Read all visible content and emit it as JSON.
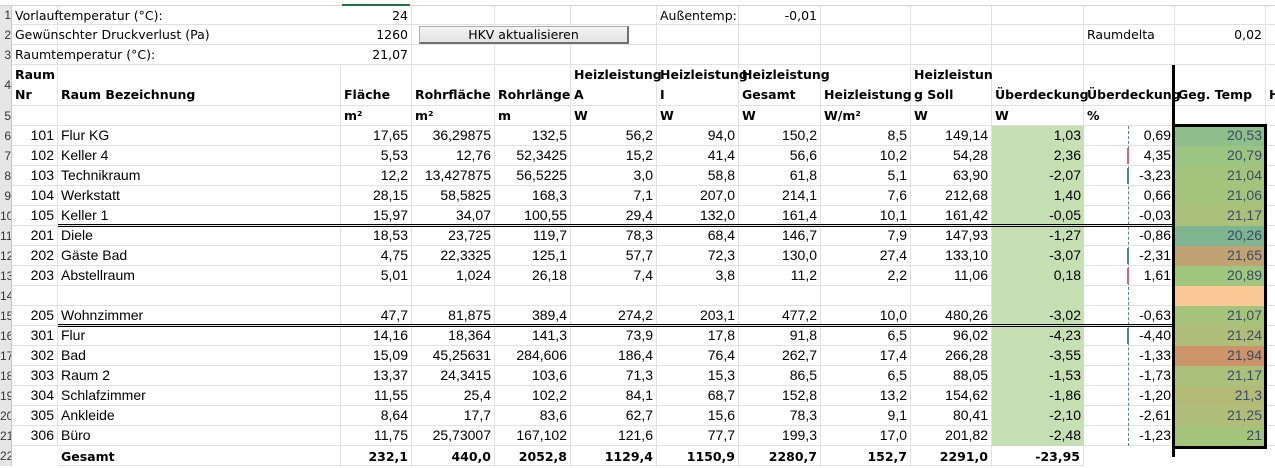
{
  "params": {
    "vorlauf_label": "Vorlauftemperatur (°C):",
    "vorlauf_value": "24",
    "druck_label": "Gewünschter Druckverlust (Pa)",
    "druck_value": "1260",
    "raumtemp_label": "Raumtemperatur (°C):",
    "raumtemp_value": "21,07",
    "aussen_label": "Außentemp:",
    "aussen_value": "-0,01",
    "raumdelta_label": "Raumdelta",
    "raumdelta_value": "0,02",
    "button_label": "HKV aktualisieren"
  },
  "row_headers": [
    "1",
    "2",
    "3",
    "4",
    "5",
    "6",
    "7",
    "8",
    "9",
    "10",
    "11",
    "12",
    "13",
    "14",
    "15",
    "16",
    "17",
    "18",
    "19",
    "20",
    "21",
    "22"
  ],
  "headers": {
    "nr_line1": "Raum",
    "nr_line2": "Nr",
    "name": "Raum Bezeichnung",
    "flaeche": "Fläche",
    "rohrflaeche": "Rohrfläche",
    "rohrlaenge": "Rohrlänge",
    "hl_a_1": "Heizleistung",
    "hl_a_2": "A",
    "hl_i_1": "Heizleistung",
    "hl_i_2": "I",
    "hl_g_1": "Heizleistung",
    "hl_g_2": "Gesamt",
    "hl_m2": "Heizleistung",
    "hl_soll_1": "Heizleistun",
    "hl_soll_2": "g Soll",
    "ueber_w": "Überdeckung",
    "ueber_p": "Überdeckung",
    "gegtemp": "Geg. Temp",
    "next": "H"
  },
  "units": {
    "flaeche": "m²",
    "rohrflaeche": "m²",
    "rohrlaenge": "m",
    "hl_a": "W",
    "hl_i": "W",
    "hl_g": "W",
    "hl_m2": "W/m²",
    "hl_soll": "W",
    "ueber_w": "W",
    "ueber_p": "%"
  },
  "rows": [
    {
      "nr": "101",
      "name": "Flur KG",
      "flaeche": "17,65",
      "rohrflaeche": "36,29875",
      "rohrlaenge": "132,5",
      "hl_a": "56,2",
      "hl_i": "94,0",
      "hl_g": "150,2",
      "hl_m2": "8,5",
      "hl_soll": "149,14",
      "ueber_w": "1,03",
      "ueber_p": "0,69",
      "gegtemp": "20,53",
      "temp_color": "#8fbf8a"
    },
    {
      "nr": "102",
      "name": "Keller 4",
      "flaeche": "5,53",
      "rohrflaeche": "12,76",
      "rohrlaenge": "52,3425",
      "hl_a": "15,2",
      "hl_i": "41,4",
      "hl_g": "56,6",
      "hl_m2": "10,2",
      "hl_soll": "54,28",
      "ueber_w": "2,36",
      "ueber_p": "4,35",
      "gegtemp": "20,79",
      "temp_color": "#9cc582"
    },
    {
      "nr": "103",
      "name": "Technikraum",
      "flaeche": "12,2",
      "rohrflaeche": "13,427875",
      "rohrlaenge": "56,5225",
      "hl_a": "3,0",
      "hl_i": "58,8",
      "hl_g": "61,8",
      "hl_m2": "5,1",
      "hl_soll": "63,90",
      "ueber_w": "-2,07",
      "ueber_p": "-3,23",
      "gegtemp": "21,04",
      "temp_color": "#a4c47c"
    },
    {
      "nr": "104",
      "name": "Werkstatt",
      "flaeche": "28,15",
      "rohrflaeche": "58,5825",
      "rohrlaenge": "168,3",
      "hl_a": "7,1",
      "hl_i": "207,0",
      "hl_g": "214,1",
      "hl_m2": "7,6",
      "hl_soll": "212,68",
      "ueber_w": "1,40",
      "ueber_p": "0,66",
      "gegtemp": "21,06",
      "temp_color": "#a5c47b"
    },
    {
      "nr": "105",
      "name": "Keller 1",
      "flaeche": "15,97",
      "rohrflaeche": "34,07",
      "rohrlaenge": "100,55",
      "hl_a": "29,4",
      "hl_i": "132,0",
      "hl_g": "161,4",
      "hl_m2": "10,1",
      "hl_soll": "161,42",
      "ueber_w": "-0,05",
      "ueber_p": "-0,03",
      "gegtemp": "21,17",
      "temp_color": "#abc07a"
    },
    {
      "nr": "201",
      "name": "Diele",
      "flaeche": "18,53",
      "rohrflaeche": "23,725",
      "rohrlaenge": "119,7",
      "hl_a": "78,3",
      "hl_i": "68,4",
      "hl_g": "146,7",
      "hl_m2": "7,9",
      "hl_soll": "147,93",
      "ueber_w": "-1,27",
      "ueber_p": "-0,86",
      "gegtemp": "20,26",
      "temp_color": "#7fb490"
    },
    {
      "nr": "202",
      "name": "Gäste Bad",
      "flaeche": "4,75",
      "rohrflaeche": "22,3325",
      "rohrlaenge": "125,1",
      "hl_a": "57,7",
      "hl_i": "72,3",
      "hl_g": "130,0",
      "hl_m2": "27,4",
      "hl_soll": "133,10",
      "ueber_w": "-3,07",
      "ueber_p": "-2,31",
      "gegtemp": "21,65",
      "temp_color": "#c1a272"
    },
    {
      "nr": "203",
      "name": "Abstellraum",
      "flaeche": "5,01",
      "rohrflaeche": "1,024",
      "rohrlaenge": "26,18",
      "hl_a": "7,4",
      "hl_i": "3,8",
      "hl_g": "11,2",
      "hl_m2": "2,2",
      "hl_soll": "11,06",
      "ueber_w": "0,18",
      "ueber_p": "1,61",
      "gegtemp": "20,89",
      "temp_color": "#a0c77e"
    },
    {
      "nr": "",
      "name": "",
      "flaeche": "",
      "rohrflaeche": "",
      "rohrlaenge": "",
      "hl_a": "",
      "hl_i": "",
      "hl_g": "",
      "hl_m2": "",
      "hl_soll": "",
      "ueber_w": "",
      "ueber_p": "",
      "gegtemp": "",
      "temp_color": "#fbc995"
    },
    {
      "nr": "205",
      "name": "Wohnzimmer",
      "flaeche": "47,7",
      "rohrflaeche": "81,875",
      "rohrlaenge": "389,4",
      "hl_a": "274,2",
      "hl_i": "203,1",
      "hl_g": "477,2",
      "hl_m2": "10,0",
      "hl_soll": "480,26",
      "ueber_w": "-3,02",
      "ueber_p": "-0,63",
      "gegtemp": "21,07",
      "temp_color": "#a6c37a"
    },
    {
      "nr": "301",
      "name": "Flur",
      "flaeche": "14,16",
      "rohrflaeche": "18,364",
      "rohrlaenge": "141,3",
      "hl_a": "73,9",
      "hl_i": "17,8",
      "hl_g": "91,8",
      "hl_m2": "6,5",
      "hl_soll": "96,02",
      "ueber_w": "-4,23",
      "ueber_p": "-4,40",
      "gegtemp": "21,24",
      "temp_color": "#afbd78"
    },
    {
      "nr": "302",
      "name": "Bad",
      "flaeche": "15,09",
      "rohrflaeche": "45,25631",
      "rohrlaenge": "284,606",
      "hl_a": "186,4",
      "hl_i": "76,4",
      "hl_g": "262,7",
      "hl_m2": "17,4",
      "hl_soll": "266,28",
      "ueber_w": "-3,55",
      "ueber_p": "-1,33",
      "gegtemp": "21,94",
      "temp_color": "#cc9468"
    },
    {
      "nr": "303",
      "name": "Raum 2",
      "flaeche": "13,37",
      "rohrflaeche": "24,3415",
      "rohrlaenge": "103,6",
      "hl_a": "71,3",
      "hl_i": "15,3",
      "hl_g": "86,5",
      "hl_m2": "6,5",
      "hl_soll": "88,05",
      "ueber_w": "-1,53",
      "ueber_p": "-1,73",
      "gegtemp": "21,17",
      "temp_color": "#abc07a"
    },
    {
      "nr": "304",
      "name": "Schlafzimmer",
      "flaeche": "11,55",
      "rohrflaeche": "25,4",
      "rohrlaenge": "102,2",
      "hl_a": "84,1",
      "hl_i": "68,7",
      "hl_g": "152,8",
      "hl_m2": "13,2",
      "hl_soll": "154,62",
      "ueber_w": "-1,86",
      "ueber_p": "-1,20",
      "gegtemp": "21,3",
      "temp_color": "#b2ba76"
    },
    {
      "nr": "305",
      "name": "Ankleide",
      "flaeche": "8,64",
      "rohrflaeche": "17,7",
      "rohrlaenge": "83,6",
      "hl_a": "62,7",
      "hl_i": "15,6",
      "hl_g": "78,3",
      "hl_m2": "9,1",
      "hl_soll": "80,41",
      "ueber_w": "-2,10",
      "ueber_p": "-2,61",
      "gegtemp": "21,25",
      "temp_color": "#afbd78"
    },
    {
      "nr": "306",
      "name": "Büro",
      "flaeche": "11,75",
      "rohrflaeche": "25,73007",
      "rohrlaenge": "167,102",
      "hl_a": "121,6",
      "hl_i": "77,7",
      "hl_g": "199,3",
      "hl_m2": "17,0",
      "hl_soll": "201,82",
      "ueber_w": "-2,48",
      "ueber_p": "-1,23",
      "gegtemp": "21",
      "temp_color": "#a4c47c"
    }
  ],
  "total_row": {
    "name": "Gesamt",
    "flaeche": "232,1",
    "rohrflaeche": "440,0",
    "rohrlaenge": "2052,8",
    "hl_a": "1129,4",
    "hl_i": "1150,9",
    "hl_g": "2280,7",
    "hl_m2": "152,7",
    "hl_soll": "2291,0",
    "ueber_w": "-23,95"
  }
}
